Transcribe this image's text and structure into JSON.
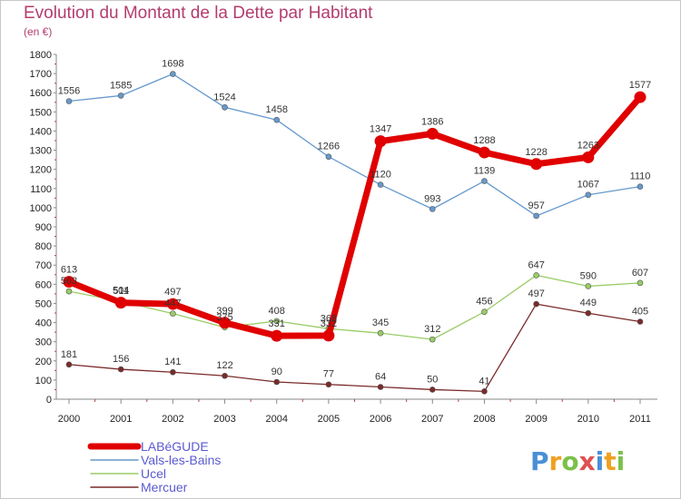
{
  "header": {
    "title": "Evolution du Montant de la Dette par Habitant",
    "subtitle": "(en €)"
  },
  "logo": {
    "letters": [
      "P",
      "r",
      "o",
      "x",
      "i",
      "t",
      "i"
    ],
    "colors": [
      "#4a8fd6",
      "#f0a020",
      "#7cc04a",
      "#e05050",
      "#4a8fd6",
      "#f0a020",
      "#7cc04a"
    ]
  },
  "chart_data": {
    "type": "line",
    "title": "Evolution du Montant de la Dette par Habitant",
    "ylabel": "(en €)",
    "xlabel": "",
    "x": [
      "2000",
      "2001",
      "2002",
      "2003",
      "2004",
      "2005",
      "2006",
      "2007",
      "2008",
      "2009",
      "2010",
      "2011"
    ],
    "ylim": [
      0,
      1800
    ],
    "yticks": [
      0,
      100,
      200,
      300,
      400,
      500,
      600,
      700,
      800,
      900,
      1000,
      1100,
      1200,
      1300,
      1400,
      1500,
      1600,
      1700,
      1800
    ],
    "grid": false,
    "legend_position": "bottom-left",
    "series": [
      {
        "name": "LABéGUDE",
        "color": "#e00000",
        "values": [
          613,
          504,
          497,
          399,
          331,
          332,
          1347,
          1386,
          1288,
          1228,
          1263,
          1577
        ]
      },
      {
        "name": "Vals-les-Bains",
        "color": "#6699cc",
        "values": [
          1556,
          1585,
          1698,
          1524,
          1458,
          1266,
          1120,
          993,
          1139,
          957,
          1067,
          1110
        ]
      },
      {
        "name": "Ucel",
        "color": "#99cc66",
        "values": [
          563,
          511,
          447,
          375,
          408,
          368,
          345,
          312,
          456,
          647,
          590,
          607
        ]
      },
      {
        "name": "Mercuer",
        "color": "#7a2a2a",
        "values": [
          181,
          156,
          141,
          122,
          90,
          77,
          64,
          50,
          41,
          497,
          449,
          405
        ]
      }
    ]
  }
}
